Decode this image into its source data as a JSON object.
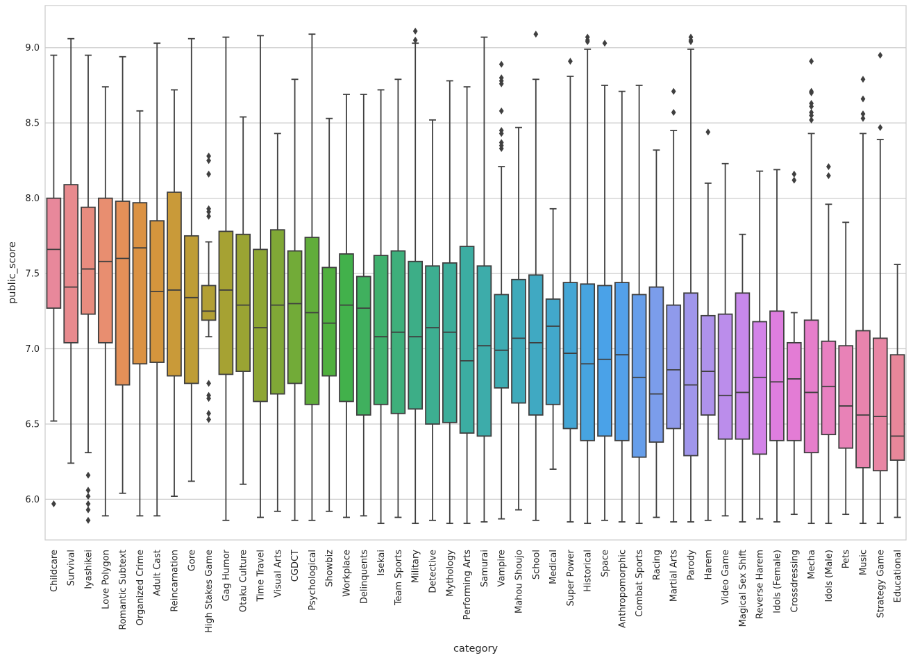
{
  "chart_data": {
    "type": "boxplot",
    "title": "",
    "xlabel": "category",
    "ylabel": "public_score",
    "ylim": [
      5.73,
      9.28
    ],
    "yticks": [
      "6.0",
      "6.5",
      "7.0",
      "7.5",
      "8.0",
      "8.5",
      "9.0"
    ],
    "grid": true,
    "series": [
      {
        "category": "Childcare",
        "color": "#e8889b",
        "whisker_low": 6.52,
        "q1": 7.27,
        "median": 7.66,
        "q3": 8.0,
        "whisker_high": 8.95,
        "outliers": [
          5.97
        ]
      },
      {
        "category": "Survival",
        "color": "#e88a8e",
        "whisker_low": 6.24,
        "q1": 7.04,
        "median": 7.41,
        "q3": 8.09,
        "whisker_high": 9.06,
        "outliers": []
      },
      {
        "category": "Iyashikei",
        "color": "#e88c7f",
        "whisker_low": 6.31,
        "q1": 7.23,
        "median": 7.53,
        "q3": 7.94,
        "whisker_high": 8.95,
        "outliers": [
          6.16,
          6.06,
          6.02,
          5.97,
          5.93,
          5.86
        ]
      },
      {
        "category": "Love Polygon",
        "color": "#e88e70",
        "whisker_low": 5.89,
        "q1": 7.04,
        "median": 7.58,
        "q3": 8.0,
        "whisker_high": 8.74,
        "outliers": []
      },
      {
        "category": "Romantic Subtext",
        "color": "#e49058",
        "whisker_low": 6.04,
        "q1": 6.76,
        "median": 7.6,
        "q3": 7.98,
        "whisker_high": 8.94,
        "outliers": []
      },
      {
        "category": "Organized Crime",
        "color": "#db9243",
        "whisker_low": 5.89,
        "q1": 6.9,
        "median": 7.67,
        "q3": 7.97,
        "whisker_high": 8.58,
        "outliers": []
      },
      {
        "category": "Adult Cast",
        "color": "#d4953d",
        "whisker_low": 5.89,
        "q1": 6.91,
        "median": 7.38,
        "q3": 7.85,
        "whisker_high": 9.03,
        "outliers": []
      },
      {
        "category": "Reincarnation",
        "color": "#c99a39",
        "whisker_low": 6.02,
        "q1": 6.82,
        "median": 7.39,
        "q3": 8.04,
        "whisker_high": 8.72,
        "outliers": []
      },
      {
        "category": "Gore",
        "color": "#be9d36",
        "whisker_low": 6.12,
        "q1": 6.77,
        "median": 7.34,
        "q3": 7.75,
        "whisker_high": 9.06,
        "outliers": []
      },
      {
        "category": "High Stakes Game",
        "color": "#b29f34",
        "whisker_low": 7.08,
        "q1": 7.19,
        "median": 7.25,
        "q3": 7.42,
        "whisker_high": 7.71,
        "outliers": [
          8.28,
          8.25,
          8.16,
          7.93,
          7.91,
          7.88,
          6.77,
          6.69,
          6.67,
          6.57,
          6.53
        ]
      },
      {
        "category": "Gag Humor",
        "color": "#a6a233",
        "whisker_low": 5.86,
        "q1": 6.83,
        "median": 7.39,
        "q3": 7.78,
        "whisker_high": 9.07,
        "outliers": []
      },
      {
        "category": "Otaku Culture",
        "color": "#9aa433",
        "whisker_low": 6.1,
        "q1": 6.85,
        "median": 7.29,
        "q3": 7.76,
        "whisker_high": 8.54,
        "outliers": []
      },
      {
        "category": "Time Travel",
        "color": "#8ea634",
        "whisker_low": 5.88,
        "q1": 6.65,
        "median": 7.14,
        "q3": 7.66,
        "whisker_high": 9.08,
        "outliers": []
      },
      {
        "category": "Visual Arts",
        "color": "#80a836",
        "whisker_low": 5.92,
        "q1": 6.7,
        "median": 7.29,
        "q3": 7.79,
        "whisker_high": 8.43,
        "outliers": []
      },
      {
        "category": "CGDCT",
        "color": "#72ab38",
        "whisker_low": 5.86,
        "q1": 6.77,
        "median": 7.3,
        "q3": 7.65,
        "whisker_high": 8.79,
        "outliers": []
      },
      {
        "category": "Psychological",
        "color": "#61ad3b",
        "whisker_low": 5.86,
        "q1": 6.63,
        "median": 7.24,
        "q3": 7.74,
        "whisker_high": 9.09,
        "outliers": []
      },
      {
        "category": "Showbiz",
        "color": "#50b03e",
        "whisker_low": 5.92,
        "q1": 6.82,
        "median": 7.17,
        "q3": 7.54,
        "whisker_high": 8.53,
        "outliers": []
      },
      {
        "category": "Workplace",
        "color": "#42b14b",
        "whisker_low": 5.88,
        "q1": 6.65,
        "median": 7.29,
        "q3": 7.63,
        "whisker_high": 8.69,
        "outliers": []
      },
      {
        "category": "Delinquents",
        "color": "#40b05e",
        "whisker_low": 5.89,
        "q1": 6.56,
        "median": 7.27,
        "q3": 7.48,
        "whisker_high": 8.69,
        "outliers": []
      },
      {
        "category": "Isekai",
        "color": "#3fb06d",
        "whisker_low": 5.84,
        "q1": 6.63,
        "median": 7.08,
        "q3": 7.62,
        "whisker_high": 8.72,
        "outliers": []
      },
      {
        "category": "Team Sports",
        "color": "#3eaf7b",
        "whisker_low": 5.88,
        "q1": 6.57,
        "median": 7.11,
        "q3": 7.65,
        "whisker_high": 8.79,
        "outliers": []
      },
      {
        "category": "Military",
        "color": "#3dae87",
        "whisker_low": 5.84,
        "q1": 6.6,
        "median": 7.08,
        "q3": 7.58,
        "whisker_high": 9.03,
        "outliers": [
          9.11,
          9.05
        ]
      },
      {
        "category": "Detective",
        "color": "#3dae91",
        "whisker_low": 5.86,
        "q1": 6.5,
        "median": 7.14,
        "q3": 7.55,
        "whisker_high": 8.52,
        "outliers": []
      },
      {
        "category": "Mythology",
        "color": "#3cad9a",
        "whisker_low": 5.84,
        "q1": 6.51,
        "median": 7.11,
        "q3": 7.57,
        "whisker_high": 8.78,
        "outliers": []
      },
      {
        "category": "Performing Arts",
        "color": "#3cada2",
        "whisker_low": 5.84,
        "q1": 6.44,
        "median": 6.92,
        "q3": 7.68,
        "whisker_high": 8.74,
        "outliers": []
      },
      {
        "category": "Samurai",
        "color": "#3dacaa",
        "whisker_low": 5.85,
        "q1": 6.42,
        "median": 7.02,
        "q3": 7.55,
        "whisker_high": 9.07,
        "outliers": []
      },
      {
        "category": "Vampire",
        "color": "#3eacb2",
        "whisker_low": 5.87,
        "q1": 6.74,
        "median": 6.99,
        "q3": 7.36,
        "whisker_high": 8.21,
        "outliers": [
          8.89,
          8.8,
          8.78,
          8.76,
          8.58,
          8.45,
          8.43,
          8.37,
          8.35,
          8.33
        ]
      },
      {
        "category": "Mahou Shoujo",
        "color": "#3faaba",
        "whisker_low": 5.93,
        "q1": 6.64,
        "median": 7.07,
        "q3": 7.46,
        "whisker_high": 8.47,
        "outliers": []
      },
      {
        "category": "School",
        "color": "#40a9c2",
        "whisker_low": 5.86,
        "q1": 6.56,
        "median": 7.04,
        "q3": 7.49,
        "whisker_high": 8.79,
        "outliers": [
          9.09
        ]
      },
      {
        "category": "Medical",
        "color": "#42a8cb",
        "whisker_low": 6.2,
        "q1": 6.63,
        "median": 7.15,
        "q3": 7.33,
        "whisker_high": 7.93,
        "outliers": []
      },
      {
        "category": "Super Power",
        "color": "#44a6d5",
        "whisker_low": 5.85,
        "q1": 6.47,
        "median": 6.97,
        "q3": 7.44,
        "whisker_high": 8.81,
        "outliers": [
          8.91
        ]
      },
      {
        "category": "Historical",
        "color": "#47a4e0",
        "whisker_low": 5.84,
        "q1": 6.39,
        "median": 6.9,
        "q3": 7.43,
        "whisker_high": 8.99,
        "outliers": [
          9.07,
          9.05,
          9.04
        ]
      },
      {
        "category": "Space",
        "color": "#4aa2e8",
        "whisker_low": 5.86,
        "q1": 6.42,
        "median": 6.93,
        "q3": 7.42,
        "whisker_high": 8.75,
        "outliers": [
          9.03
        ]
      },
      {
        "category": "Anthropomorphic",
        "color": "#53a0ea",
        "whisker_low": 5.85,
        "q1": 6.39,
        "median": 6.96,
        "q3": 7.44,
        "whisker_high": 8.71,
        "outliers": []
      },
      {
        "category": "Combat Sports",
        "color": "#669eea",
        "whisker_low": 5.84,
        "q1": 6.28,
        "median": 6.81,
        "q3": 7.36,
        "whisker_high": 8.75,
        "outliers": []
      },
      {
        "category": "Racing",
        "color": "#7b9deb",
        "whisker_low": 5.88,
        "q1": 6.38,
        "median": 6.7,
        "q3": 7.41,
        "whisker_high": 8.32,
        "outliers": []
      },
      {
        "category": "Martial Arts",
        "color": "#8f9aeb",
        "whisker_low": 5.85,
        "q1": 6.47,
        "median": 6.86,
        "q3": 7.29,
        "whisker_high": 8.45,
        "outliers": [
          8.71,
          8.57
        ]
      },
      {
        "category": "Parody",
        "color": "#a096eb",
        "whisker_low": 5.85,
        "q1": 6.29,
        "median": 6.76,
        "q3": 7.37,
        "whisker_high": 8.99,
        "outliers": [
          9.07,
          9.05,
          9.04
        ]
      },
      {
        "category": "Harem",
        "color": "#ae92eb",
        "whisker_low": 5.86,
        "q1": 6.56,
        "median": 6.85,
        "q3": 7.22,
        "whisker_high": 8.1,
        "outliers": [
          8.44
        ]
      },
      {
        "category": "Video Game",
        "color": "#bb8deb",
        "whisker_low": 5.89,
        "q1": 6.4,
        "median": 6.69,
        "q3": 7.23,
        "whisker_high": 8.23,
        "outliers": []
      },
      {
        "category": "Magical Sex Shift",
        "color": "#c788eb",
        "whisker_low": 5.85,
        "q1": 6.4,
        "median": 6.71,
        "q3": 7.37,
        "whisker_high": 7.76,
        "outliers": []
      },
      {
        "category": "Reverse Harem",
        "color": "#d383e8",
        "whisker_low": 5.87,
        "q1": 6.3,
        "median": 6.81,
        "q3": 7.18,
        "whisker_high": 8.18,
        "outliers": []
      },
      {
        "category": "Idols (Female)",
        "color": "#de7edf",
        "whisker_low": 5.85,
        "q1": 6.39,
        "median": 6.78,
        "q3": 7.25,
        "whisker_high": 8.19,
        "outliers": []
      },
      {
        "category": "Crossdressing",
        "color": "#e37cd5",
        "whisker_low": 5.9,
        "q1": 6.39,
        "median": 6.8,
        "q3": 7.04,
        "whisker_high": 7.24,
        "outliers": [
          8.16,
          8.12
        ]
      },
      {
        "category": "Mecha",
        "color": "#e67ecb",
        "whisker_low": 5.84,
        "q1": 6.31,
        "median": 6.71,
        "q3": 7.19,
        "whisker_high": 8.43,
        "outliers": [
          8.91,
          8.71,
          8.7,
          8.63,
          8.61,
          8.57,
          8.55,
          8.52
        ]
      },
      {
        "category": "Idols (Male)",
        "color": "#e880c1",
        "whisker_low": 5.84,
        "q1": 6.43,
        "median": 6.75,
        "q3": 7.05,
        "whisker_high": 7.96,
        "outliers": [
          8.21,
          8.15
        ]
      },
      {
        "category": "Pets",
        "color": "#e882b7",
        "whisker_low": 5.9,
        "q1": 6.34,
        "median": 6.62,
        "q3": 7.02,
        "whisker_high": 7.84,
        "outliers": []
      },
      {
        "category": "Music",
        "color": "#e884ad",
        "whisker_low": 5.84,
        "q1": 6.21,
        "median": 6.56,
        "q3": 7.12,
        "whisker_high": 8.43,
        "outliers": [
          8.79,
          8.66,
          8.56,
          8.53
        ]
      },
      {
        "category": "Strategy Game",
        "color": "#e886a4",
        "whisker_low": 5.84,
        "q1": 6.19,
        "median": 6.55,
        "q3": 7.07,
        "whisker_high": 8.39,
        "outliers": [
          8.95,
          8.47
        ]
      },
      {
        "category": "Educational",
        "color": "#e8879a",
        "whisker_low": 5.88,
        "q1": 6.26,
        "median": 6.42,
        "q3": 6.96,
        "whisker_high": 7.56,
        "outliers": []
      }
    ]
  }
}
